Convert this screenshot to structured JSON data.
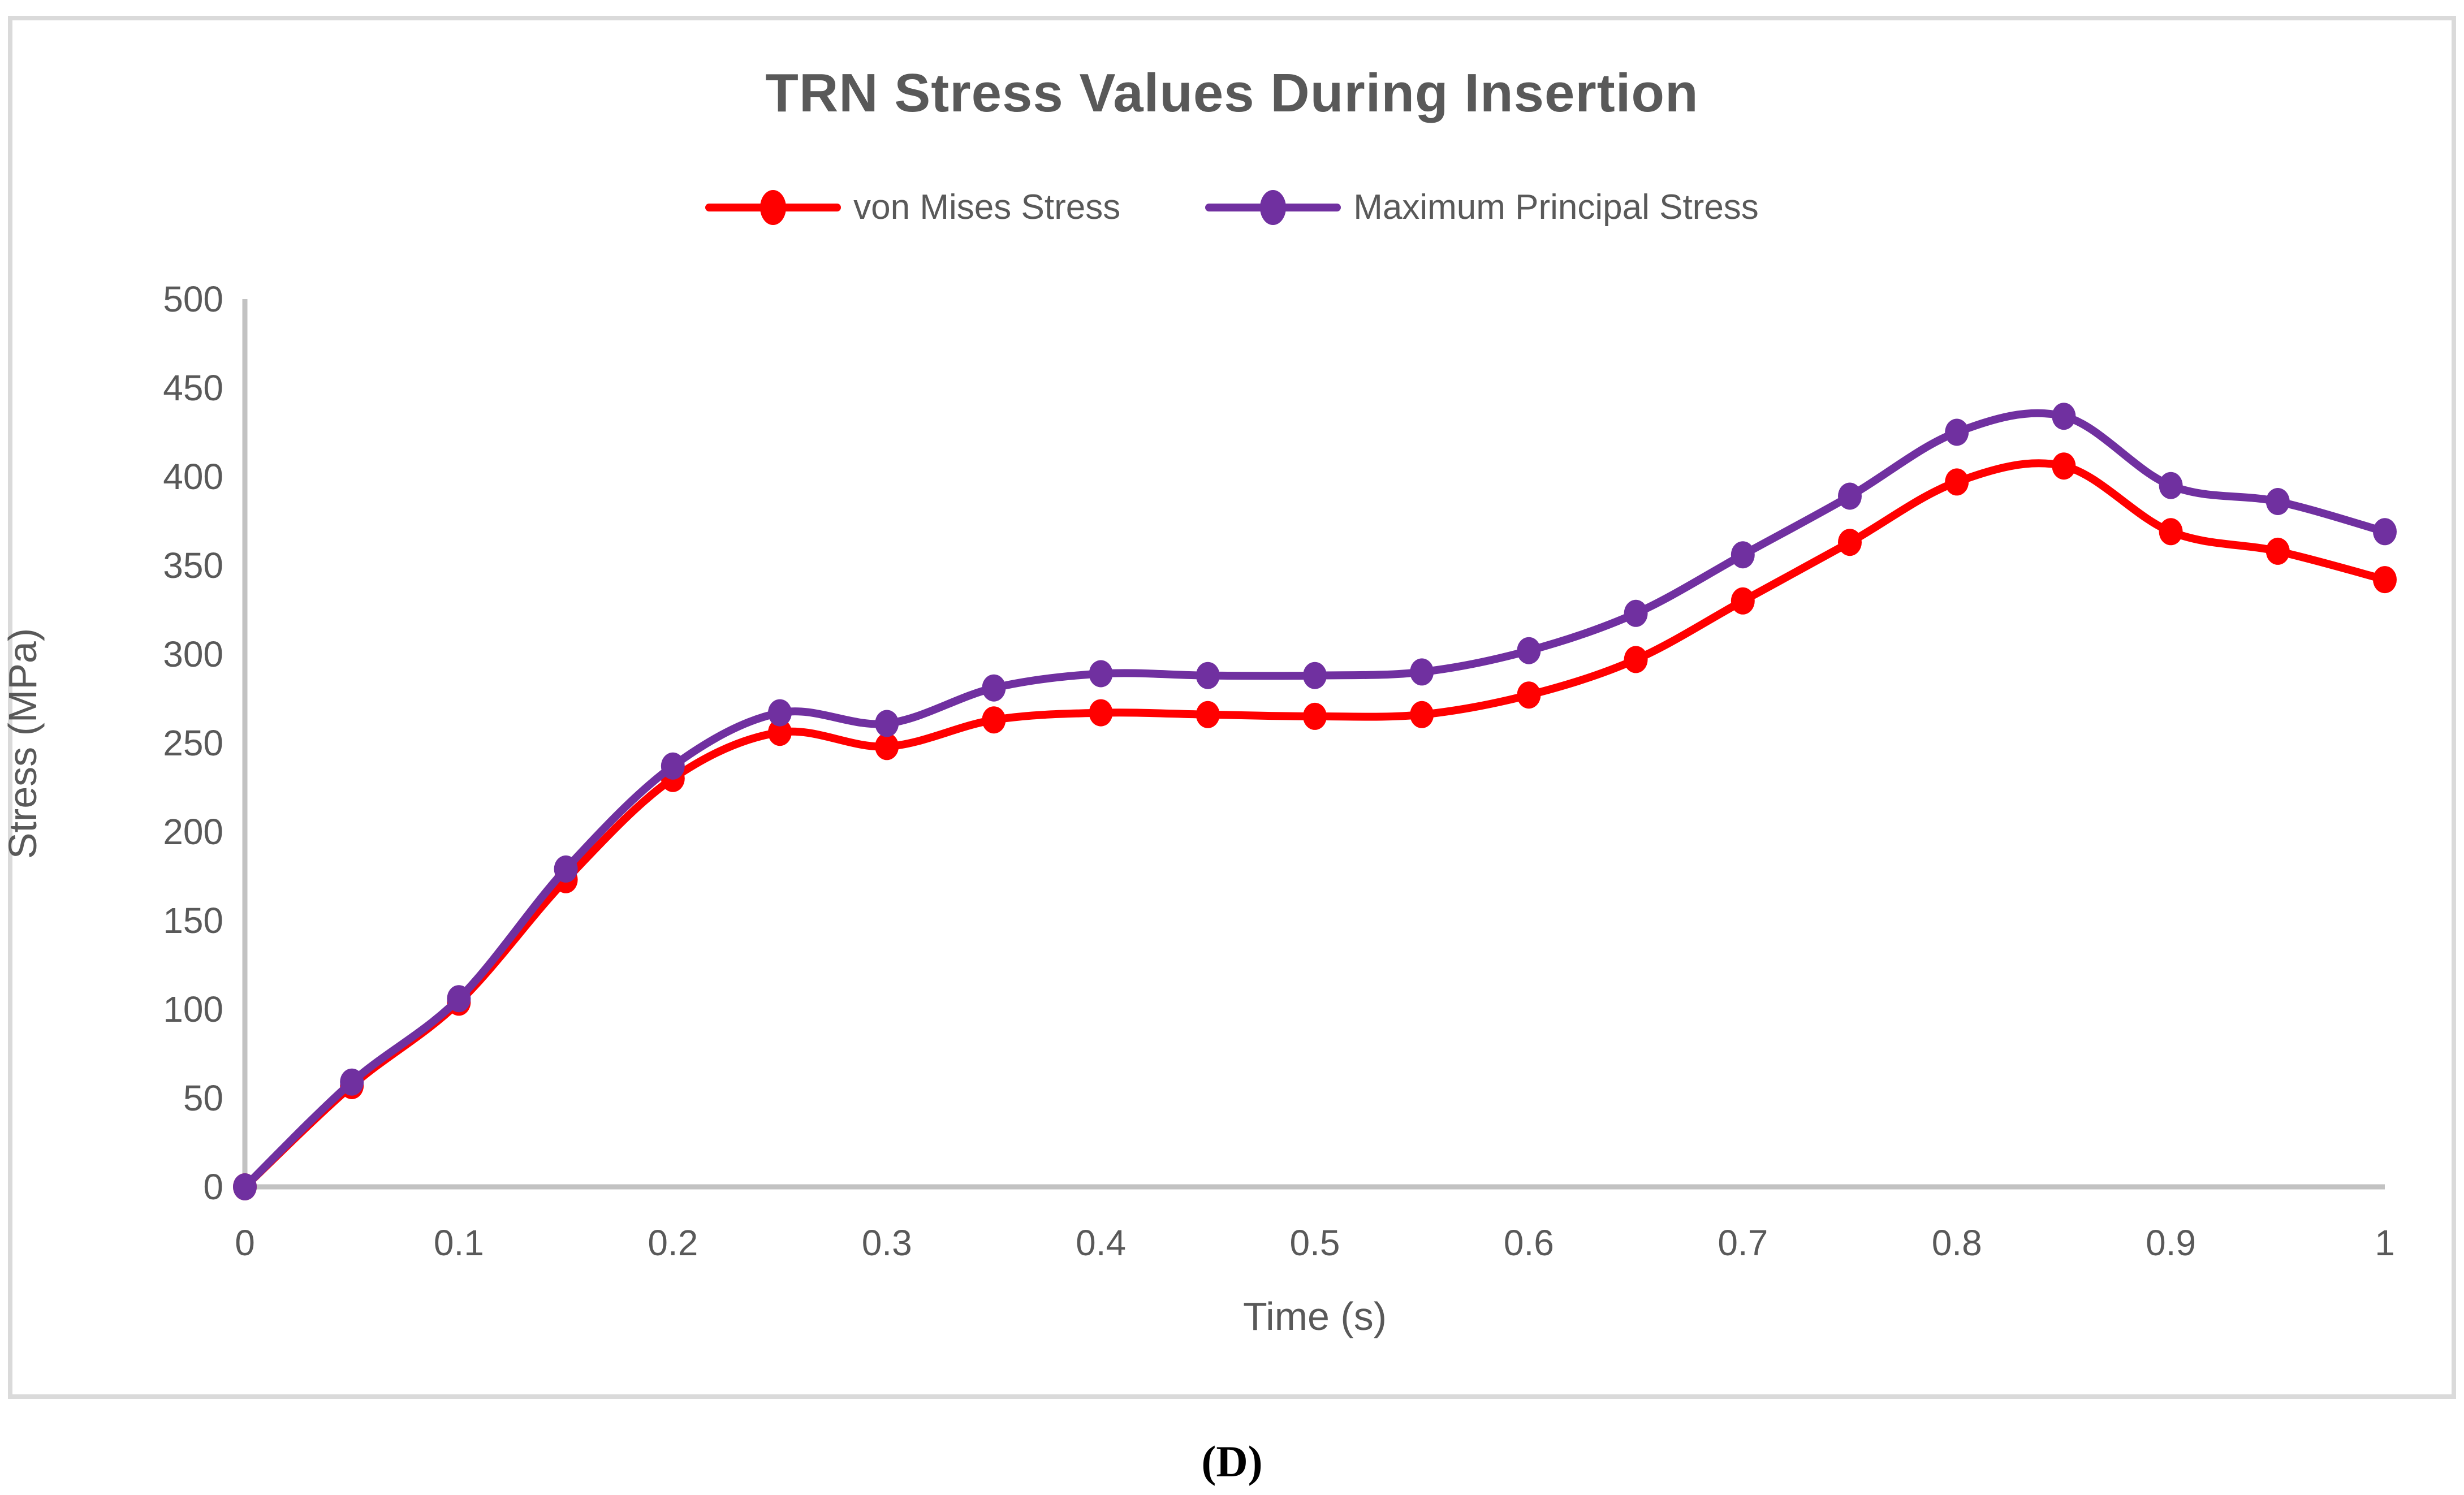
{
  "figure": {
    "caption": "(D)"
  },
  "styles": {
    "text_color": "#595959",
    "axis_color": "#c2c2c2",
    "frame_color": "#dadada",
    "background": "#ffffff"
  },
  "chart_data": {
    "type": "line",
    "title": "TRN Stress Values During Insertion",
    "xlabel": "Time (s)",
    "ylabel": "Stress (MPa)",
    "xlim": [
      0,
      1
    ],
    "ylim": [
      0,
      500
    ],
    "grid": false,
    "smooth": true,
    "marker": "circle",
    "legend_position": "top",
    "x_tick_labels": [
      "0",
      "0.1",
      "0.2",
      "0.3",
      "0.4",
      "0.5",
      "0.6",
      "0.7",
      "0.8",
      "0.9",
      "1"
    ],
    "y_ticks": [
      0,
      50,
      100,
      150,
      200,
      250,
      300,
      350,
      400,
      450,
      500
    ],
    "x": [
      0,
      0.05,
      0.1,
      0.15,
      0.2,
      0.25,
      0.3,
      0.35,
      0.4,
      0.45,
      0.5,
      0.55,
      0.6,
      0.65,
      0.7,
      0.75,
      0.8,
      0.85,
      0.9,
      0.95,
      1
    ],
    "series": [
      {
        "name": "von Mises Stress",
        "color": "#ff0000",
        "values": [
          0,
          57,
          104,
          173,
          230,
          256,
          248,
          263,
          267,
          266,
          265,
          266,
          277,
          297,
          330,
          363,
          397,
          406,
          369,
          358,
          342
        ]
      },
      {
        "name": "Maximum Principal Stress",
        "color": "#7030a0",
        "values": [
          0,
          59,
          106,
          179,
          237,
          267,
          261,
          281,
          289,
          288,
          288,
          290,
          302,
          323,
          356,
          389,
          425,
          434,
          395,
          386,
          369
        ]
      }
    ]
  }
}
